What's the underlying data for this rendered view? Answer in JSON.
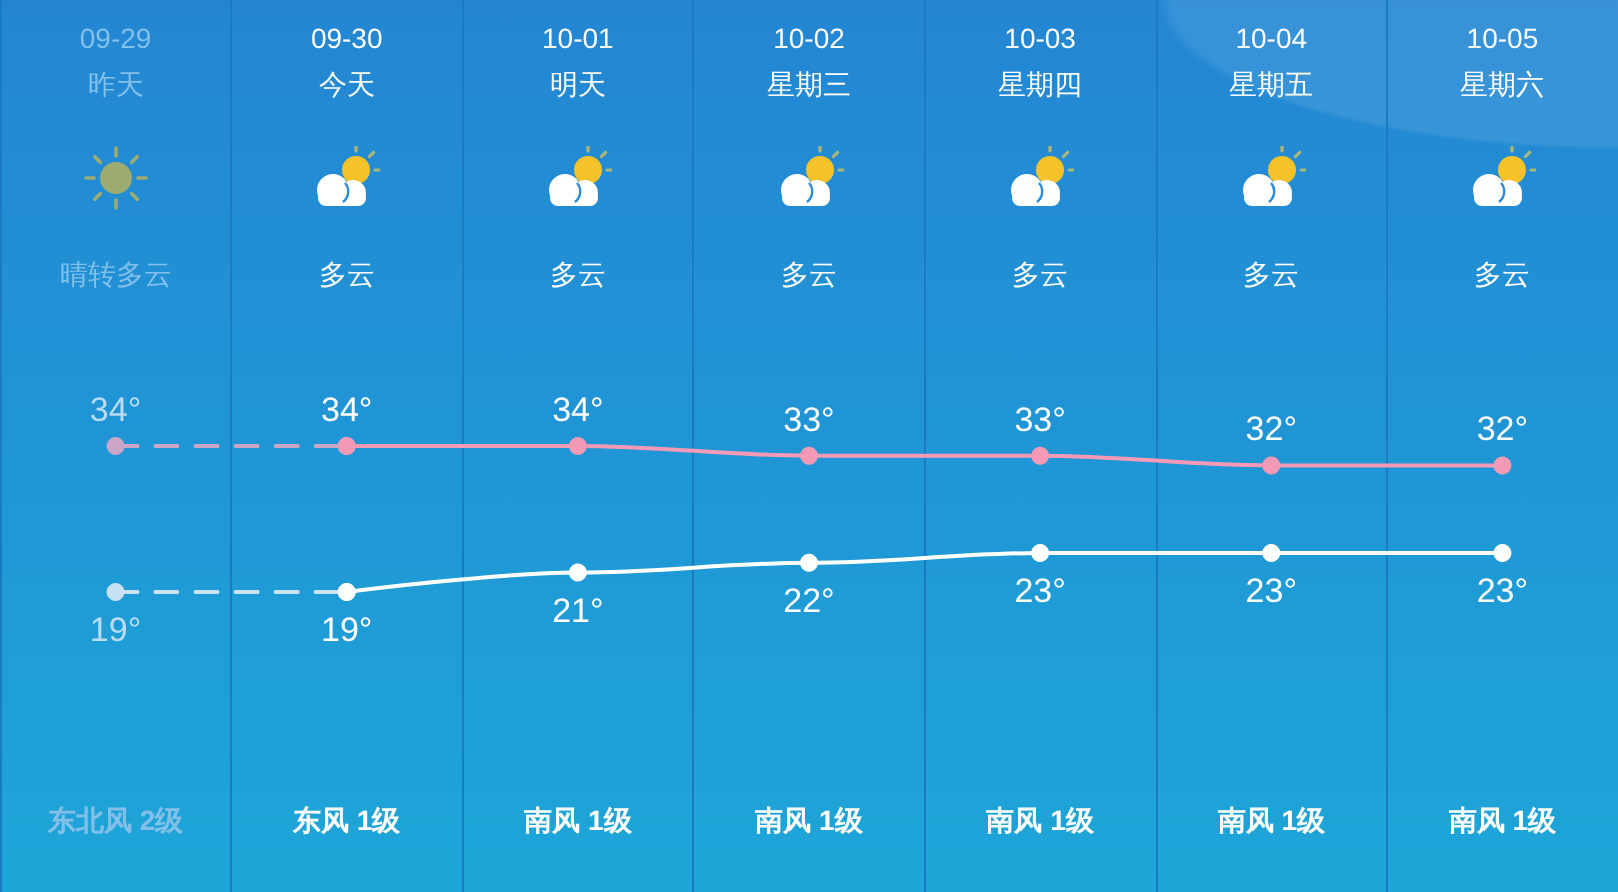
{
  "chart_data": {
    "type": "line",
    "categories": [
      "09-29",
      "09-30",
      "10-01",
      "10-02",
      "10-03",
      "10-04",
      "10-05"
    ],
    "annotations": [
      "昨天",
      "今天",
      "明天",
      "星期三",
      "星期四",
      "星期五",
      "星期六",
      "晴转多云",
      "多云",
      "多云",
      "多云",
      "多云",
      "多云",
      "多云",
      "东北风 2级",
      "东风 1级",
      "南风 1级",
      "南风 1级",
      "南风 1级",
      "南风 1级",
      "南风 1级"
    ],
    "series": [
      {
        "color": "#caa6c8",
        "line_style": "dashed",
        "values": [
          34,
          34,
          null,
          null,
          null,
          null,
          null
        ],
        "value_labels": [
          "34°",
          null,
          null,
          null,
          null,
          null,
          null
        ]
      },
      {
        "color": "#f49ab6",
        "values": [
          null,
          34,
          34,
          33,
          33,
          32,
          32
        ],
        "value_labels": [
          null,
          "34°",
          "34°",
          "33°",
          "33°",
          "32°",
          "32°"
        ]
      },
      {
        "color": "#c6e2f4",
        "line_style": "dashed",
        "values": [
          19,
          19,
          null,
          null,
          null,
          null,
          null
        ],
        "value_labels": [
          "19°",
          null,
          null,
          null,
          null,
          null,
          null
        ]
      },
      {
        "color": "#ffffff",
        "values": [
          null,
          19,
          21,
          22,
          23,
          23,
          23
        ],
        "value_labels": [
          null,
          "19°",
          "21°",
          "22°",
          "23°",
          "23°",
          "23°"
        ]
      }
    ],
    "marker": "circle",
    "line_style": "solid",
    "grid": "x",
    "tick_labels": "x"
  }
}
